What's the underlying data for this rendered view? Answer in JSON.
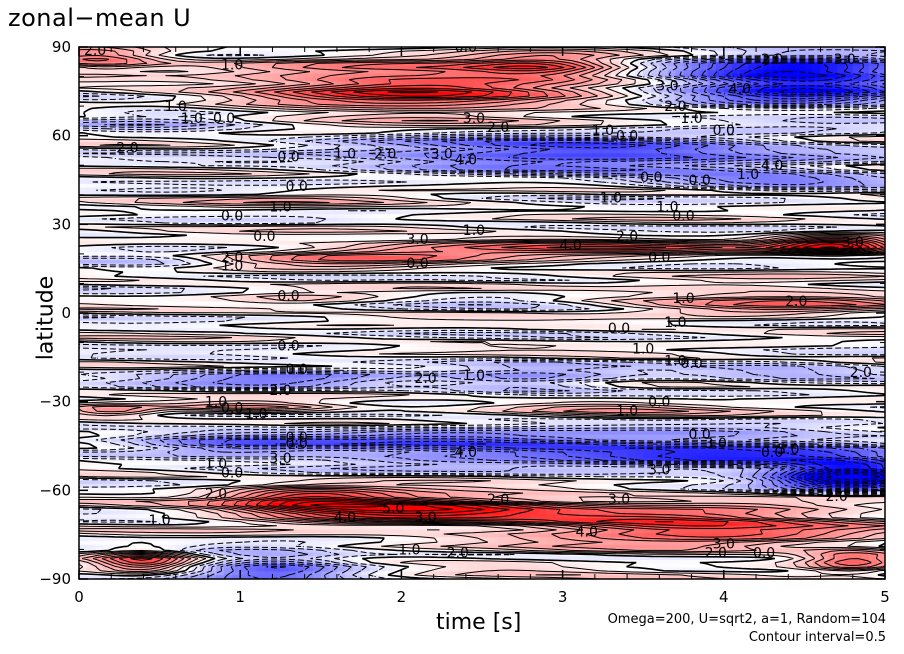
{
  "title": "zonal−mean U",
  "chart_data": {
    "type": "heatmap",
    "title": "zonal−mean U",
    "xlabel": "time [s]",
    "ylabel": "latitude",
    "xlim": [
      0,
      5
    ],
    "ylim": [
      -90,
      90
    ],
    "xticks": [
      "0",
      "1",
      "2",
      "3",
      "4",
      "5"
    ],
    "yticks": [
      "90",
      "60",
      "30",
      "0",
      "−30",
      "−60",
      "−90"
    ],
    "colors": {
      "positive": "#ff0000",
      "negative": "#0000ff",
      "zero": "#ffffff"
    },
    "contour_interval": 0.5,
    "features": [
      {
        "t": 2.1,
        "lat": 76,
        "value": 4.5,
        "tw": 1.1,
        "lw": 9
      },
      {
        "t": 0.1,
        "lat": 86,
        "value": 3.0,
        "tw": 0.4,
        "lw": 4
      },
      {
        "t": 2.9,
        "lat": 84,
        "value": 3.0,
        "tw": 0.5,
        "lw": 4
      },
      {
        "t": 4.45,
        "lat": 79,
        "value": -6.0,
        "tw": 0.8,
        "lw": 9
      },
      {
        "t": 3.1,
        "lat": 54,
        "value": -4.5,
        "tw": 1.4,
        "lw": 6
      },
      {
        "t": 0.5,
        "lat": 66,
        "value": -1.5,
        "tw": 0.6,
        "lw": 4
      },
      {
        "t": 4.3,
        "lat": 45,
        "value": -3.0,
        "tw": 0.8,
        "lw": 3
      },
      {
        "t": 1.5,
        "lat": 38,
        "value": 1.0,
        "tw": 0.9,
        "lw": 3
      },
      {
        "t": 3.0,
        "lat": 22,
        "value": 3.5,
        "tw": 1.3,
        "lw": 3
      },
      {
        "t": 4.7,
        "lat": 23,
        "value": 5.0,
        "tw": 0.4,
        "lw": 3
      },
      {
        "t": 1.7,
        "lat": 18,
        "value": 2.0,
        "tw": 0.8,
        "lw": 4
      },
      {
        "t": 0.4,
        "lat": 18,
        "value": -1.0,
        "tw": 0.5,
        "lw": 4
      },
      {
        "t": 4.3,
        "lat": 4,
        "value": 2.5,
        "tw": 0.9,
        "lw": 5
      },
      {
        "t": 2.6,
        "lat": 4,
        "value": -0.6,
        "tw": 0.5,
        "lw": 3
      },
      {
        "t": 1.4,
        "lat": 4,
        "value": 1.0,
        "tw": 0.5,
        "lw": 3
      },
      {
        "t": 1.2,
        "lat": -22,
        "value": -2.5,
        "tw": 0.8,
        "lw": 4
      },
      {
        "t": 2.8,
        "lat": -22,
        "value": -2.5,
        "tw": 0.6,
        "lw": 4
      },
      {
        "t": 4.4,
        "lat": -20,
        "value": -2.0,
        "tw": 0.7,
        "lw": 3
      },
      {
        "t": 0.2,
        "lat": -33,
        "value": 2.5,
        "tw": 0.3,
        "lw": 2
      },
      {
        "t": 1.1,
        "lat": -32,
        "value": 2.5,
        "tw": 0.6,
        "lw": 2
      },
      {
        "t": 3.3,
        "lat": -32,
        "value": 1.5,
        "tw": 0.7,
        "lw": 3
      },
      {
        "t": 4.0,
        "lat": -47,
        "value": -4.0,
        "tw": 1.1,
        "lw": 6
      },
      {
        "t": 2.3,
        "lat": -45,
        "value": -3.5,
        "tw": 1.2,
        "lw": 6
      },
      {
        "t": 0.9,
        "lat": -44,
        "value": -2.0,
        "tw": 0.6,
        "lw": 5
      },
      {
        "t": 4.8,
        "lat": -55,
        "value": -7.0,
        "tw": 0.5,
        "lw": 5
      },
      {
        "t": 2.0,
        "lat": -66,
        "value": 5.5,
        "tw": 1.0,
        "lw": 5
      },
      {
        "t": 3.8,
        "lat": -72,
        "value": 4.5,
        "tw": 1.1,
        "lw": 7
      },
      {
        "t": 1.4,
        "lat": -63,
        "value": 3.0,
        "tw": 0.5,
        "lw": 4
      },
      {
        "t": 0.4,
        "lat": -84,
        "value": 3.5,
        "tw": 0.3,
        "lw": 4
      },
      {
        "t": 1.2,
        "lat": -86,
        "value": -3.5,
        "tw": 0.5,
        "lw": 5
      },
      {
        "t": 2.6,
        "lat": -86,
        "value": 1.0,
        "tw": 0.8,
        "lw": 3
      },
      {
        "t": 4.8,
        "lat": -84,
        "value": 3.0,
        "tw": 0.3,
        "lw": 4
      }
    ],
    "contour_labels": [
      {
        "text": "2.0",
        "t": 0.1,
        "lat": 89
      },
      {
        "text": "1.0",
        "t": 0.95,
        "lat": 84
      },
      {
        "text": "1.0",
        "t": 0.6,
        "lat": 70
      },
      {
        "text": "1.0",
        "t": 0.7,
        "lat": 66
      },
      {
        "text": "0.0",
        "t": 0.9,
        "lat": 66
      },
      {
        "text": "2.0",
        "t": 0.3,
        "lat": 56
      },
      {
        "text": "0.0",
        "t": 1.3,
        "lat": 53
      },
      {
        "text": "1.0",
        "t": 1.65,
        "lat": 54
      },
      {
        "text": "2.0",
        "t": 1.9,
        "lat": 54
      },
      {
        "text": "3.0",
        "t": 2.25,
        "lat": 54
      },
      {
        "text": "4.0",
        "t": 2.4,
        "lat": 52
      },
      {
        "text": "3.0",
        "t": 2.45,
        "lat": 66
      },
      {
        "text": "2.0",
        "t": 2.6,
        "lat": 63
      },
      {
        "text": "1.0",
        "t": 3.25,
        "lat": 62
      },
      {
        "text": "0.0",
        "t": 3.4,
        "lat": 60
      },
      {
        "text": "2.0",
        "t": 3.7,
        "lat": 70
      },
      {
        "text": "1.0",
        "t": 3.8,
        "lat": 66
      },
      {
        "text": "0.0",
        "t": 4.0,
        "lat": 62
      },
      {
        "text": "2.0",
        "t": 4.3,
        "lat": 86
      },
      {
        "text": "3.0",
        "t": 4.75,
        "lat": 86
      },
      {
        "text": "3.0",
        "t": 3.65,
        "lat": 77
      },
      {
        "text": "4.0",
        "t": 4.1,
        "lat": 76
      },
      {
        "text": "0.0",
        "t": 1.35,
        "lat": 43
      },
      {
        "text": "1.0",
        "t": 1.25,
        "lat": 36
      },
      {
        "text": "0.0",
        "t": 0.95,
        "lat": 33
      },
      {
        "text": "0.0",
        "t": 1.15,
        "lat": 26
      },
      {
        "text": "0.0",
        "t": 2.4,
        "lat": 90
      },
      {
        "text": "1.0",
        "t": 3.3,
        "lat": 39
      },
      {
        "text": "1.0",
        "t": 3.65,
        "lat": 36
      },
      {
        "text": "0.0",
        "t": 3.75,
        "lat": 33
      },
      {
        "text": "0.0",
        "t": 3.55,
        "lat": 46
      },
      {
        "text": "0.0",
        "t": 3.85,
        "lat": 45
      },
      {
        "text": "1.0",
        "t": 4.15,
        "lat": 47
      },
      {
        "text": "4.0",
        "t": 4.3,
        "lat": 50
      },
      {
        "text": "3.0",
        "t": 2.1,
        "lat": 25
      },
      {
        "text": "1.0",
        "t": 2.45,
        "lat": 28
      },
      {
        "text": "4.0",
        "t": 3.05,
        "lat": 23
      },
      {
        "text": "2.0",
        "t": 3.4,
        "lat": 26
      },
      {
        "text": "2.0",
        "t": 0.95,
        "lat": 19
      },
      {
        "text": "1.0",
        "t": 0.95,
        "lat": 16
      },
      {
        "text": "0.0",
        "t": 2.1,
        "lat": 17
      },
      {
        "text": "0.0",
        "t": 3.6,
        "lat": 19
      },
      {
        "text": "3.0",
        "t": 4.8,
        "lat": 24
      },
      {
        "text": "0.0",
        "t": 1.3,
        "lat": 6
      },
      {
        "text": "1.0",
        "t": 3.75,
        "lat": 5
      },
      {
        "text": "2.0",
        "t": 4.45,
        "lat": 4
      },
      {
        "text": "0.0",
        "t": 3.35,
        "lat": -5
      },
      {
        "text": "1.0",
        "t": 3.7,
        "lat": -3
      },
      {
        "text": "1.0",
        "t": 3.5,
        "lat": -12
      },
      {
        "text": "1.0",
        "t": 3.7,
        "lat": -16
      },
      {
        "text": "0.0",
        "t": 1.3,
        "lat": -11
      },
      {
        "text": "0.0",
        "t": 1.35,
        "lat": -19
      },
      {
        "text": "0.0",
        "t": 3.8,
        "lat": -17
      },
      {
        "text": "2.0",
        "t": 1.25,
        "lat": -26
      },
      {
        "text": "2.0",
        "t": 2.15,
        "lat": -22
      },
      {
        "text": "1.0",
        "t": 2.45,
        "lat": -21
      },
      {
        "text": "2.0",
        "t": 4.85,
        "lat": -20
      },
      {
        "text": "1.0",
        "t": 0.85,
        "lat": -30
      },
      {
        "text": "0.0",
        "t": 0.95,
        "lat": -32
      },
      {
        "text": "1.0",
        "t": 1.1,
        "lat": -34
      },
      {
        "text": "1.0",
        "t": 3.4,
        "lat": -33
      },
      {
        "text": "0.0",
        "t": 3.6,
        "lat": -30
      },
      {
        "text": "0.0",
        "t": 1.35,
        "lat": -42
      },
      {
        "text": "0.0",
        "t": 1.35,
        "lat": -44
      },
      {
        "text": "3.0",
        "t": 1.25,
        "lat": -49
      },
      {
        "text": "1.0",
        "t": 0.85,
        "lat": -51
      },
      {
        "text": "0.0",
        "t": 0.95,
        "lat": -54
      },
      {
        "text": "4.0",
        "t": 2.4,
        "lat": -47
      },
      {
        "text": "0.0",
        "t": 3.85,
        "lat": -41
      },
      {
        "text": "3.0",
        "t": 3.95,
        "lat": -44
      },
      {
        "text": "0.0",
        "t": 4.3,
        "lat": -47
      },
      {
        "text": "5.0",
        "t": 4.4,
        "lat": -46
      },
      {
        "text": "3.0",
        "t": 3.6,
        "lat": -53
      },
      {
        "text": "2.0",
        "t": 0.85,
        "lat": -61
      },
      {
        "text": "5.0",
        "t": 1.95,
        "lat": -66
      },
      {
        "text": "4.0",
        "t": 1.65,
        "lat": -69
      },
      {
        "text": "3.0",
        "t": 2.15,
        "lat": -69
      },
      {
        "text": "2.0",
        "t": 2.6,
        "lat": -63
      },
      {
        "text": "3.0",
        "t": 3.35,
        "lat": -63
      },
      {
        "text": "1.0",
        "t": 0.5,
        "lat": -70
      },
      {
        "text": "4.0",
        "t": 3.15,
        "lat": -74
      },
      {
        "text": "1.0",
        "t": 2.05,
        "lat": -80
      },
      {
        "text": "2.0",
        "t": 2.35,
        "lat": -81
      },
      {
        "text": "3.0",
        "t": 4.0,
        "lat": -78
      },
      {
        "text": "2.0",
        "t": 3.95,
        "lat": -81
      },
      {
        "text": "0.0",
        "t": 4.25,
        "lat": -81
      },
      {
        "text": "2.0",
        "t": 4.7,
        "lat": -62
      }
    ]
  },
  "footer": {
    "line1": "Omega=200, U=sqrt2, a=1, Random=104",
    "line2": "Contour interval=0.5"
  }
}
